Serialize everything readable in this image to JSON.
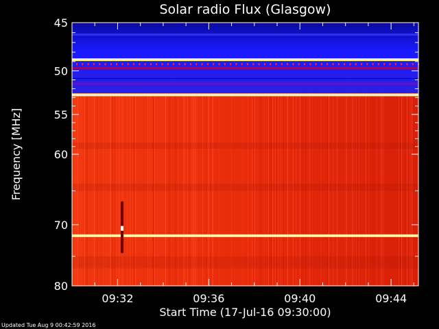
{
  "chart_data": {
    "type": "heatmap",
    "title": "Solar radio Flux (Glasgow)",
    "xlabel": "Start Time (17-Jul-16 09:30:00)",
    "ylabel": "Frequency [MHz]",
    "yscale": "log",
    "ylim": [
      45,
      80
    ],
    "y_ticks": [
      45,
      50,
      55,
      60,
      70,
      80
    ],
    "y_tick_labels": [
      "45",
      "50",
      "55",
      "60",
      "70",
      "80"
    ],
    "xlim_minutes": [
      0,
      15.2
    ],
    "x_ticks_minutes": [
      2,
      6,
      10,
      14
    ],
    "x_tick_labels": [
      "09:32",
      "09:36",
      "09:40",
      "09:44"
    ],
    "bands": [
      {
        "from_mhz": 45.0,
        "to_mhz": 52.5,
        "level": "low"
      },
      {
        "from_mhz": 52.5,
        "to_mhz": 80.0,
        "level": "high"
      }
    ],
    "bright_lines_mhz": [
      48.8,
      52.7,
      71.7
    ],
    "burst": {
      "time_minutes": 2.2,
      "from_mhz": 66.5,
      "to_mhz": 74.5,
      "peak_mhz": 70.5
    },
    "colors": {
      "low": "#1a1aff",
      "high": "#f03010",
      "line": "#ffee88",
      "burst": "#700000"
    }
  },
  "footer": {
    "updated": "Updated Tue Aug  9 00:42:59 2016"
  }
}
